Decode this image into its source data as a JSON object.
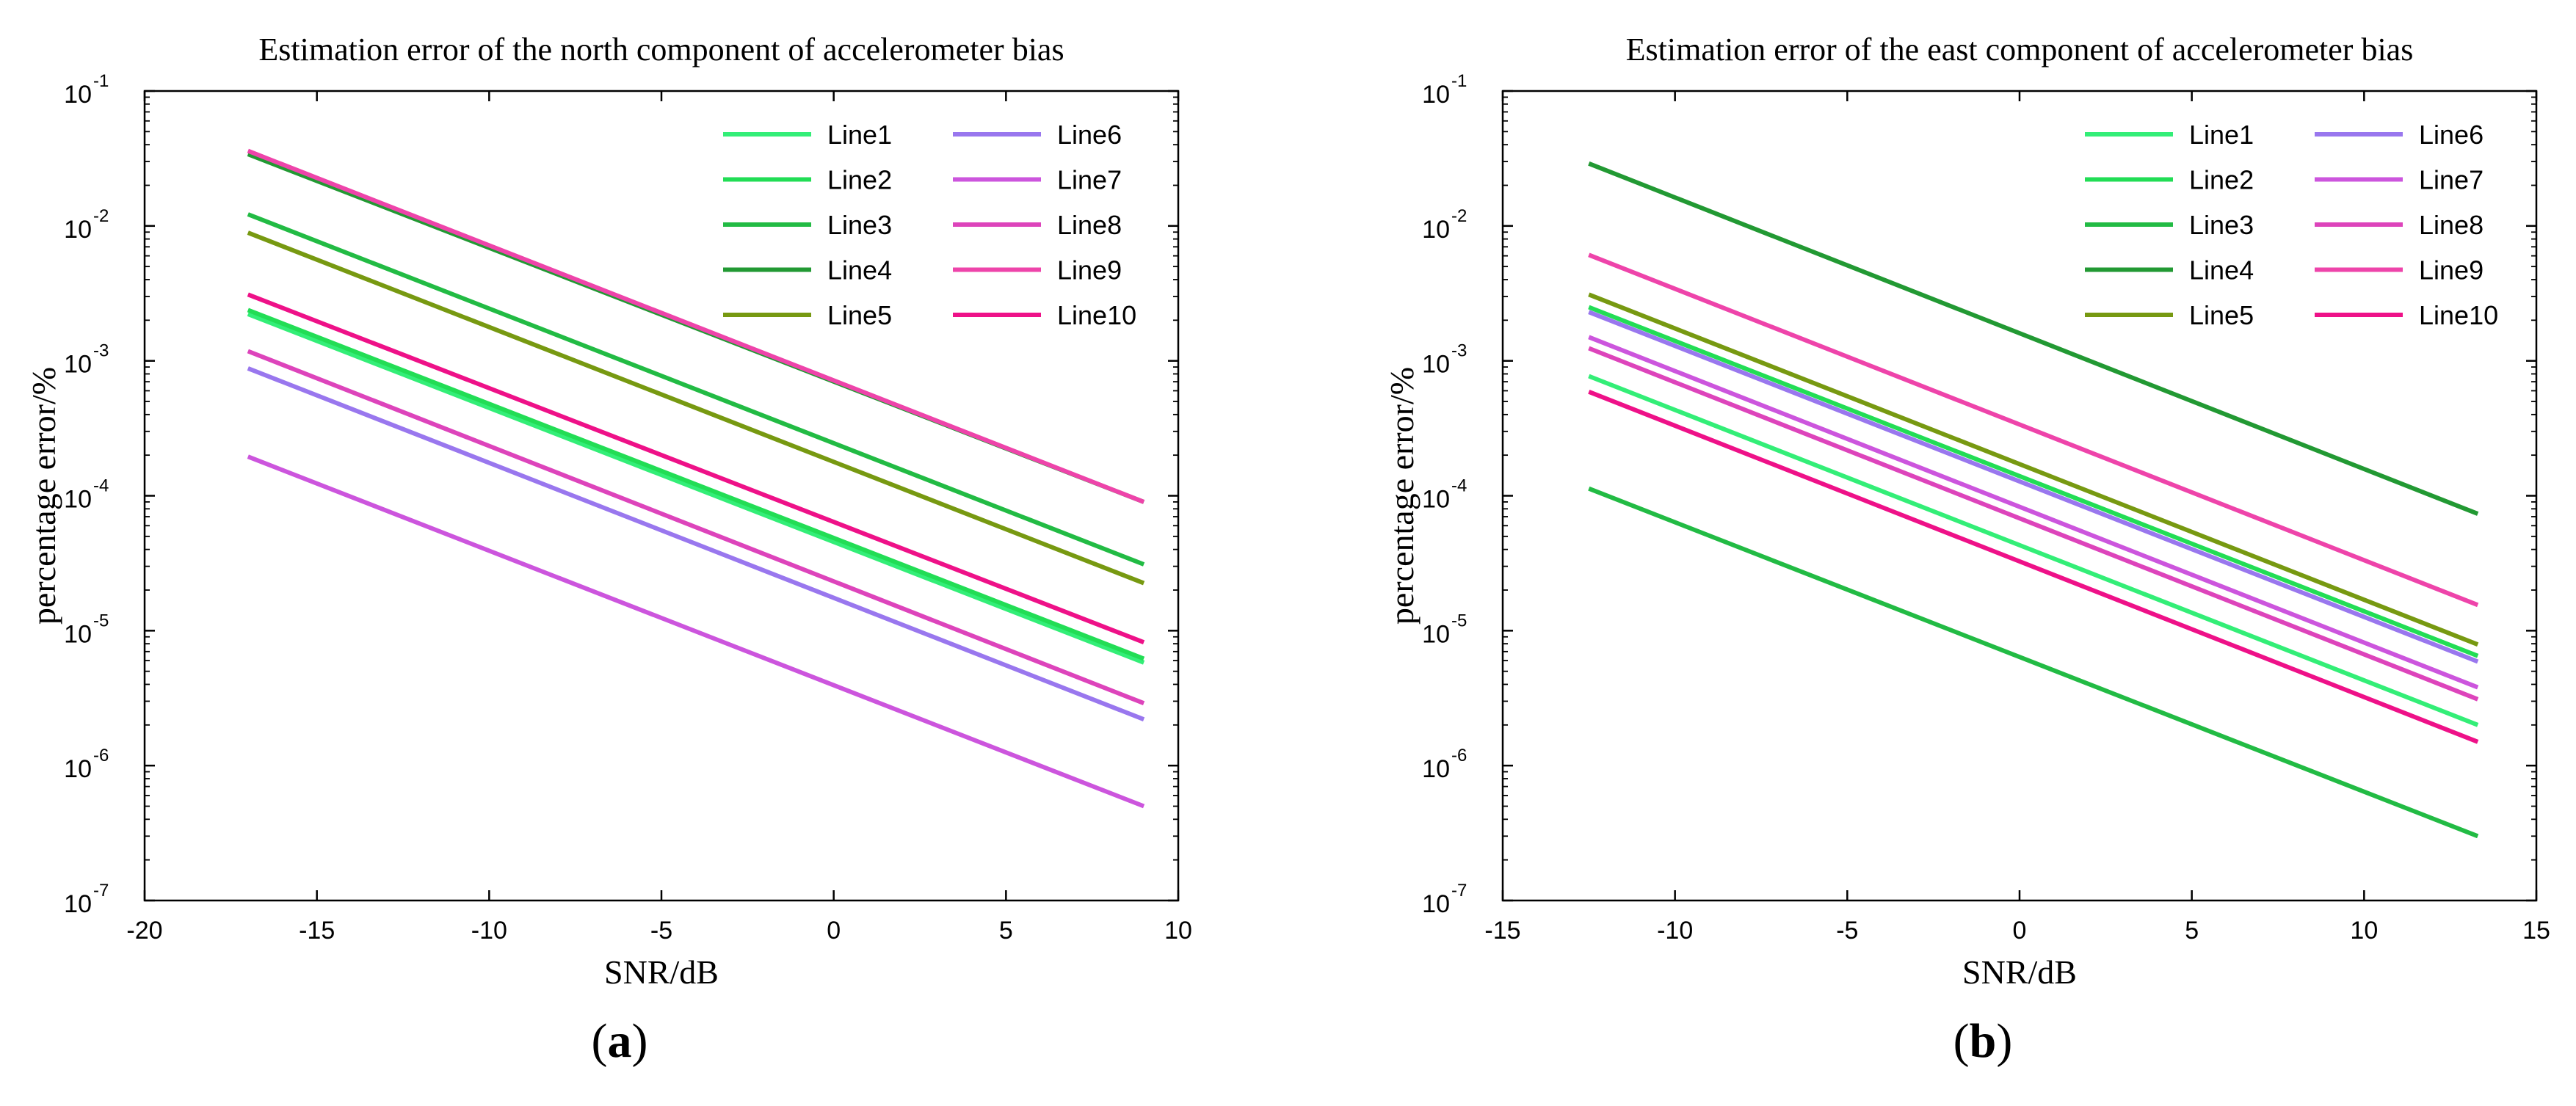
{
  "chart_data": [
    {
      "type": "line",
      "panel_label": "a",
      "title": "Estimation error of the north component of accelerometer bias",
      "xlabel": "SNR/dB",
      "ylabel": "percentage error/%",
      "xlim": [
        -20,
        10
      ],
      "xticks": [
        -20,
        -15,
        -10,
        -5,
        0,
        5,
        10
      ],
      "ylim": [
        1e-07,
        0.1
      ],
      "yscale": "log",
      "yticks": [
        {
          "value": 1e-07,
          "base": "10",
          "exp": "-7"
        },
        {
          "value": 1e-06,
          "base": "10",
          "exp": "-6"
        },
        {
          "value": 1e-05,
          "base": "10",
          "exp": "-5"
        },
        {
          "value": 0.0001,
          "base": "10",
          "exp": "-4"
        },
        {
          "value": 0.001,
          "base": "10",
          "exp": "-3"
        },
        {
          "value": 0.01,
          "base": "10",
          "exp": "-2"
        },
        {
          "value": 0.1,
          "base": "10",
          "exp": "-1"
        }
      ],
      "legend_position": "top-right",
      "series": [
        {
          "name": "Line1",
          "color": "#33ee77",
          "x": [
            -17,
            9
          ],
          "y": [
            0.00222,
            5.8e-06
          ]
        },
        {
          "name": "Line2",
          "color": "#22dd55",
          "x": [
            -17,
            9
          ],
          "y": [
            0.00238,
            6.2e-06
          ]
        },
        {
          "name": "Line3",
          "color": "#22bb44",
          "x": [
            -17,
            9
          ],
          "y": [
            0.0122,
            3.1e-05
          ]
        },
        {
          "name": "Line4",
          "color": "#229933",
          "x": [
            -17,
            9
          ],
          "y": [
            0.034,
            9e-05
          ]
        },
        {
          "name": "Line5",
          "color": "#779911",
          "x": [
            -17,
            9
          ],
          "y": [
            0.0089,
            2.25e-05
          ]
        },
        {
          "name": "Line6",
          "color": "#9977ee",
          "x": [
            -17,
            9
          ],
          "y": [
            0.00088,
            2.2e-06
          ]
        },
        {
          "name": "Line7",
          "color": "#cc55dd",
          "x": [
            -17,
            9
          ],
          "y": [
            0.000195,
            5e-07
          ]
        },
        {
          "name": "Line8",
          "color": "#dd44bb",
          "x": [
            -17,
            9
          ],
          "y": [
            0.00118,
            2.9e-06
          ]
        },
        {
          "name": "Line9",
          "color": "#ee44aa",
          "x": [
            -17,
            9
          ],
          "y": [
            0.036,
            9e-05
          ]
        },
        {
          "name": "Line10",
          "color": "#ee1188",
          "x": [
            -17,
            9
          ],
          "y": [
            0.0031,
            8.2e-06
          ]
        }
      ]
    },
    {
      "type": "line",
      "panel_label": "b",
      "title": "Estimation error of the east component of accelerometer bias",
      "xlabel": "SNR/dB",
      "ylabel": "percentage error/%",
      "xlim": [
        -15,
        15
      ],
      "xticks": [
        -15,
        -10,
        -5,
        0,
        5,
        10,
        15
      ],
      "ylim": [
        1e-07,
        0.1
      ],
      "yscale": "log",
      "yticks": [
        {
          "value": 1e-07,
          "base": "10",
          "exp": "-7"
        },
        {
          "value": 1e-06,
          "base": "10",
          "exp": "-6"
        },
        {
          "value": 1e-05,
          "base": "10",
          "exp": "-5"
        },
        {
          "value": 0.0001,
          "base": "10",
          "exp": "-4"
        },
        {
          "value": 0.001,
          "base": "10",
          "exp": "-3"
        },
        {
          "value": 0.01,
          "base": "10",
          "exp": "-2"
        },
        {
          "value": 0.1,
          "base": "10",
          "exp": "-1"
        }
      ],
      "legend_position": "top-right",
      "series": [
        {
          "name": "Line1",
          "color": "#33ee77",
          "x": [
            -12.5,
            13.3
          ],
          "y": [
            0.00077,
            2e-06
          ]
        },
        {
          "name": "Line2",
          "color": "#22dd55",
          "x": [
            -12.5,
            13.3
          ],
          "y": [
            0.0025,
            6.5e-06
          ]
        },
        {
          "name": "Line3",
          "color": "#22bb44",
          "x": [
            -12.5,
            13.3
          ],
          "y": [
            0.000113,
            3e-07
          ]
        },
        {
          "name": "Line4",
          "color": "#229933",
          "x": [
            -12.5,
            13.3
          ],
          "y": [
            0.029,
            7.35e-05
          ]
        },
        {
          "name": "Line5",
          "color": "#779911",
          "x": [
            -12.5,
            13.3
          ],
          "y": [
            0.0031,
            7.9e-06
          ]
        },
        {
          "name": "Line6",
          "color": "#9977ee",
          "x": [
            -12.5,
            13.3
          ],
          "y": [
            0.0023,
            5.9e-06
          ]
        },
        {
          "name": "Line7",
          "color": "#cc55dd",
          "x": [
            -12.5,
            13.3
          ],
          "y": [
            0.0015,
            3.8e-06
          ]
        },
        {
          "name": "Line8",
          "color": "#dd44bb",
          "x": [
            -12.5,
            13.3
          ],
          "y": [
            0.00124,
            3.1e-06
          ]
        },
        {
          "name": "Line9",
          "color": "#ee44aa",
          "x": [
            -12.5,
            13.3
          ],
          "y": [
            0.0061,
            1.55e-05
          ]
        },
        {
          "name": "Line10",
          "color": "#ee1188",
          "x": [
            -12.5,
            13.3
          ],
          "y": [
            0.00059,
            1.5e-06
          ]
        }
      ]
    }
  ]
}
